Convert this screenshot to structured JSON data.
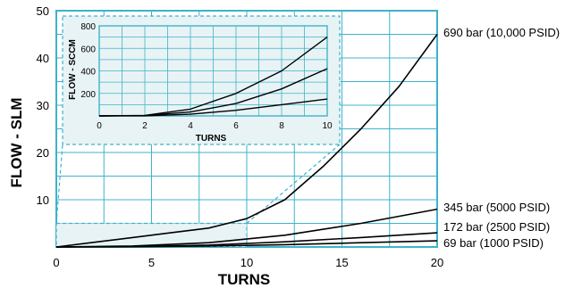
{
  "chart_data": [
    {
      "type": "line",
      "xlabel": "TURNS",
      "ylabel": "FLOW - SLM",
      "xlim": [
        0,
        20
      ],
      "ylim": [
        0,
        50
      ],
      "x_ticks": [
        0,
        5,
        10,
        15,
        20
      ],
      "y_ticks": [
        10,
        20,
        30,
        40,
        50
      ],
      "grid": true,
      "series": [
        {
          "name": "690 bar (10,000 PSID)",
          "x": [
            0,
            2,
            4,
            6,
            8,
            10,
            12,
            14,
            16,
            18,
            20
          ],
          "y": [
            0,
            1.0,
            2.0,
            3.0,
            4.0,
            6.0,
            10.0,
            17.0,
            25.0,
            34.0,
            45.0
          ]
        },
        {
          "name": "345 bar (5000 PSID)",
          "x": [
            0,
            4,
            8,
            12,
            16,
            20
          ],
          "y": [
            0,
            0.2,
            0.9,
            2.5,
            5.0,
            8.0
          ]
        },
        {
          "name": "172 bar (2500 PSID)",
          "x": [
            0,
            4,
            8,
            12,
            16,
            20
          ],
          "y": [
            0,
            0.1,
            0.4,
            1.1,
            2.0,
            3.0
          ]
        },
        {
          "name": "69 bar (1000 PSID)",
          "x": [
            0,
            4,
            8,
            12,
            16,
            20
          ],
          "y": [
            0,
            0.05,
            0.2,
            0.5,
            0.9,
            1.3
          ]
        }
      ]
    },
    {
      "type": "line",
      "xlabel": "TURNS",
      "ylabel": "FLOW - SCCM",
      "xlim": [
        0,
        10
      ],
      "ylim": [
        0,
        800
      ],
      "x_ticks": [
        0,
        2,
        4,
        6,
        8,
        10
      ],
      "y_ticks": [
        200,
        400,
        600,
        800
      ],
      "grid": true,
      "series": [
        {
          "x": [
            0,
            2,
            4,
            6,
            8,
            10
          ],
          "y": [
            0,
            5,
            60,
            200,
            400,
            700
          ]
        },
        {
          "x": [
            0,
            2,
            4,
            6,
            8,
            10
          ],
          "y": [
            0,
            3,
            35,
            110,
            240,
            420
          ]
        },
        {
          "x": [
            0,
            2,
            4,
            6,
            8,
            10
          ],
          "y": [
            0,
            1,
            15,
            50,
            100,
            150
          ]
        }
      ]
    }
  ],
  "colors": {
    "grid": "#3fb3c8",
    "inset_fill": "#e8f3f6",
    "line": "#000000"
  }
}
